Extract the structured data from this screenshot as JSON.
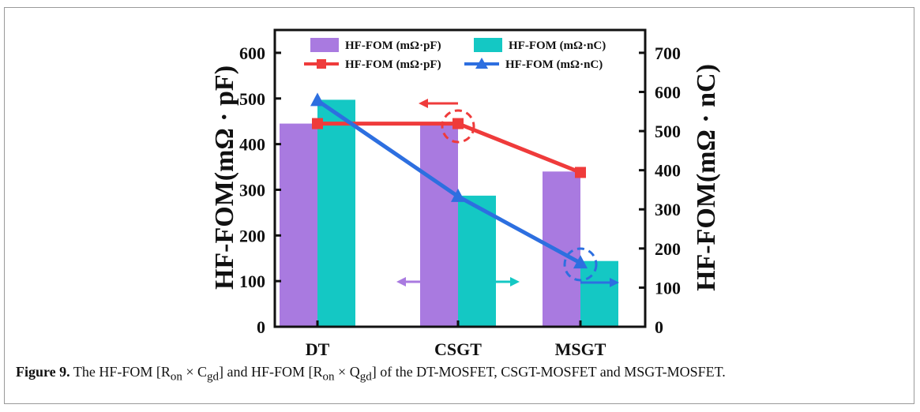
{
  "chart_data": {
    "type": "bar",
    "categories": [
      "DT",
      "CSGT",
      "MSGT"
    ],
    "series": [
      {
        "name": "HF-FOM (mΩ·pF)",
        "kind": "bar",
        "axis": "left",
        "color": "#a97ae0",
        "values": [
          445,
          448,
          340
        ]
      },
      {
        "name": "HF-FOM (mΩ·nC)",
        "kind": "bar",
        "axis": "right",
        "color": "#14c8c4",
        "values": [
          580,
          335,
          168
        ]
      },
      {
        "name": "HF-FOM (mΩ·pF)",
        "kind": "line",
        "axis": "left",
        "color": "#ef3b3b",
        "marker": "square",
        "values": [
          445,
          445,
          338
        ]
      },
      {
        "name": "HF-FOM (mΩ·nC)",
        "kind": "line",
        "axis": "right",
        "color": "#2d6fe0",
        "marker": "triangle",
        "values": [
          578,
          333,
          163
        ]
      }
    ],
    "ylabel": "HF-FOM(mΩ · pF)",
    "y2label": "HF-FOM(mΩ · nC)",
    "ylim": [
      0,
      650
    ],
    "y2lim": [
      0,
      758.3
    ],
    "yticks": [
      0,
      100,
      200,
      300,
      400,
      500,
      600
    ],
    "y2ticks": [
      0,
      100,
      200,
      300,
      400,
      500,
      600,
      700
    ],
    "legend_position": "top"
  },
  "caption": {
    "label": "Figure 9.",
    "text": " The HF-FOM [R",
    "p1": "on",
    "p2": " × C",
    "p3": "gd",
    "p4": "] and HF-FOM [R",
    "p5": "on",
    "p6": " × Q",
    "p7": "gd",
    "p8": "] of the DT-MOSFET, CSGT-MOSFET and MSGT-MOSFET."
  }
}
